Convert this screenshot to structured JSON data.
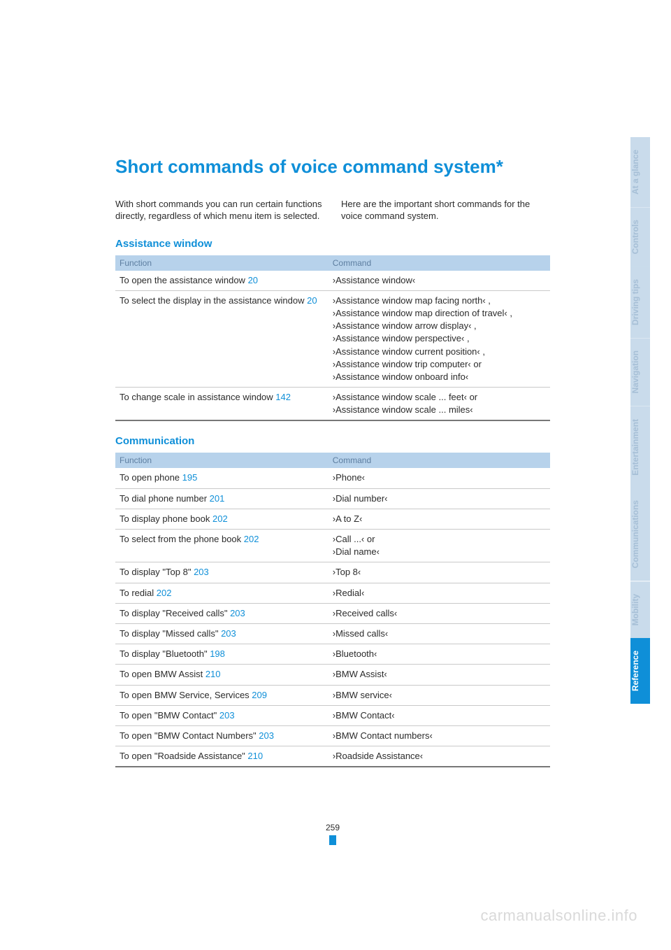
{
  "title": "Short commands of voice command system*",
  "intro_left": "With short commands you can run certain func­tions directly, regardless of which menu item is selected.",
  "intro_right": "Here are the important short commands for the voice command system.",
  "section1_title": "Assistance window",
  "section2_title": "Communication",
  "th_function": "Function",
  "th_command": "Command",
  "tabs": [
    {
      "label": "At a glance",
      "bg": "#c9dbeb",
      "fg": "#a6bfd6"
    },
    {
      "label": "Controls",
      "bg": "#c9dbeb",
      "fg": "#a6bfd6"
    },
    {
      "label": "Driving tips",
      "bg": "#c9dbeb",
      "fg": "#a6bfd6"
    },
    {
      "label": "Navigation",
      "bg": "#c9dbeb",
      "fg": "#a6bfd6"
    },
    {
      "label": "Entertainment",
      "bg": "#c9dbeb",
      "fg": "#a6bfd6"
    },
    {
      "label": "Communications",
      "bg": "#c9dbeb",
      "fg": "#a6bfd6"
    },
    {
      "label": "Mobility",
      "bg": "#c9dbeb",
      "fg": "#a6bfd6"
    },
    {
      "label": "Reference",
      "bg": "#0F8FD8",
      "fg": "#ffffff"
    }
  ],
  "assist_rows": [
    {
      "func": "To open the assistance window",
      "page": "20",
      "cmd": "›Assistance window‹"
    },
    {
      "func": "To select the display in the assistance window",
      "page": "20",
      "cmd": "›Assistance window map facing north‹ ,\n›Assistance window map direction of travel‹ ,\n›Assistance window arrow display‹ ,\n›Assistance window perspective‹ ,\n›Assistance window current position‹ ,\n›Assistance window trip computer‹  or\n›Assistance window onboard info‹"
    },
    {
      "func": "To change scale in assistance window",
      "page": "142",
      "cmd": "›Assistance window scale ... feet‹  or\n›Assistance window scale ... miles‹"
    }
  ],
  "comm_rows": [
    {
      "func": "To open phone",
      "page": "195",
      "cmd": "›Phone‹"
    },
    {
      "func": "To dial phone number",
      "page": "201",
      "cmd": "›Dial number‹"
    },
    {
      "func": "To display phone book",
      "page": "202",
      "cmd": "›A to Z‹"
    },
    {
      "func": "To select from the phone book",
      "page": "202",
      "cmd": "›Call ...‹  or\n›Dial name‹"
    },
    {
      "func": "To display \"Top 8\"",
      "page": "203",
      "cmd": "›Top 8‹"
    },
    {
      "func": "To redial",
      "page": "202",
      "cmd": "›Redial‹"
    },
    {
      "func": "To display \"Received calls\"",
      "page": "203",
      "cmd": "›Received calls‹"
    },
    {
      "func": "To display \"Missed calls\"",
      "page": "203",
      "cmd": "›Missed calls‹"
    },
    {
      "func": "To display \"Bluetooth\"",
      "page": "198",
      "cmd": "›Bluetooth‹"
    },
    {
      "func": "To open BMW Assist",
      "page": "210",
      "cmd": "›BMW Assist‹"
    },
    {
      "func": "To open BMW Service, Services",
      "page": "209",
      "cmd": "›BMW service‹"
    },
    {
      "func": "To open \"BMW Contact\"",
      "page": "203",
      "cmd": "›BMW Contact‹"
    },
    {
      "func": "To open \"BMW Contact Numbers\"",
      "page": "203",
      "cmd": "›BMW Contact numbers‹"
    },
    {
      "func": "To open \"Roadside Assistance\"",
      "page": "210",
      "cmd": "›Roadside Assistance‹"
    }
  ],
  "page_number": "259",
  "watermark": "carmanualsonline.info"
}
